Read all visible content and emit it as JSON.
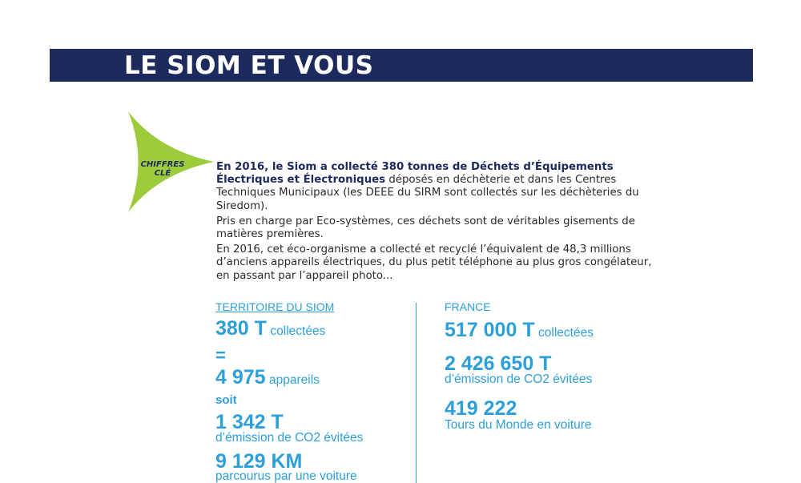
{
  "header": {
    "title": "LE SIOM ET VOUS"
  },
  "badge": {
    "line1": "CHIFFRES",
    "line2": "CLÉ",
    "color": "#9ccb3b"
  },
  "intro": {
    "p1_bold": "En 2016, le Siom a collecté 380 tonnes de Déchets d’Équipements Électriques et Électroniques",
    "p1_rest": " déposés en déchèterie et dans les Centres Techniques Municipaux (les DEEE du SIRM sont collectés sur les déchèteries du Siredom).",
    "p2": "Pris en charge par Eco-systèmes, ces déchets sont de véritables gisements de matières premières.",
    "p3": "En 2016, cet éco-organisme a collecté et recyclé l’équivalent de 48,3 millions d’anciens appareils électriques, du plus petit téléphone au plus gros congélateur, en passant par l’appareil photo..."
  },
  "territoire": {
    "heading": "TERRITOIRE DU SIOM",
    "stat1_value": "380 T",
    "stat1_label": "collectées",
    "equals": "=",
    "stat2_value": "4 975",
    "stat2_label": "appareils",
    "connector": "soit",
    "stat3_value": "1 342 T",
    "stat3_label": "d’émission de CO2 évitées",
    "stat4_value": "9 129 KM",
    "stat4_label": "parcourus par une voiture"
  },
  "france": {
    "heading": "FRANCE",
    "stat1_value": "517 000 T",
    "stat1_label": "collectées",
    "stat2_value": "2 426 650 T",
    "stat2_label": "d’émission de CO2 évitées",
    "stat3_value": "419 222",
    "stat3_label": "Tours du Monde en voiture"
  },
  "colors": {
    "navy": "#1c2a5e",
    "blue": "#2d9fd9",
    "green": "#9ccb3b"
  }
}
